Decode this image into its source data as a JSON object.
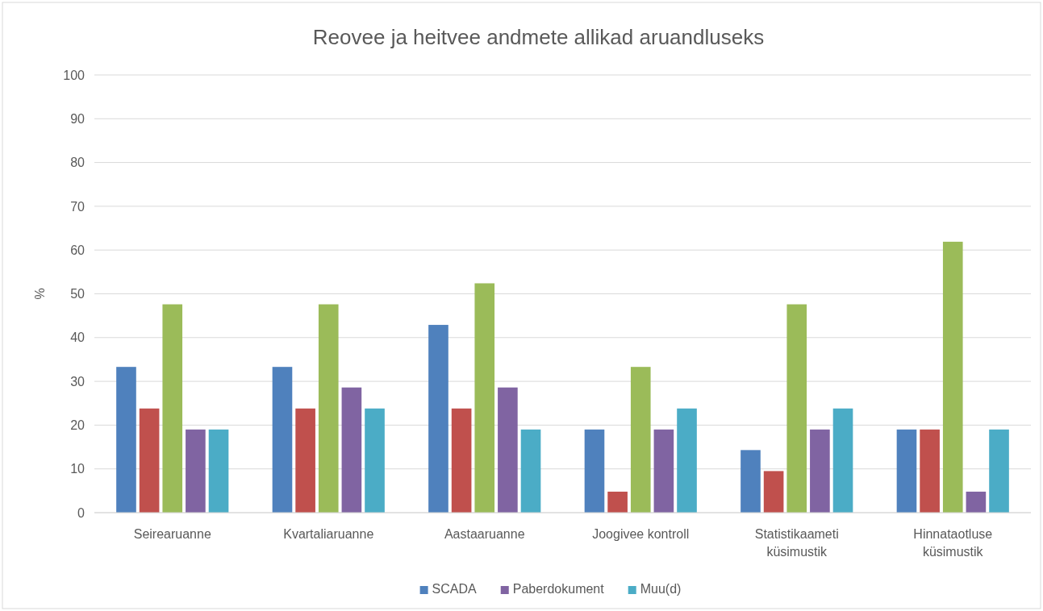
{
  "chart_data": {
    "type": "bar",
    "title": "Reovee ja heitvee andmete allikad aruandluseks",
    "ylabel": "%",
    "categories": [
      "Seirearuanne",
      "Kvartaliaruanne",
      "Aastaaruanne",
      "Joogivee kontroll",
      "Statistikaameti küsimustik",
      "Hinnataotluse küsimustik"
    ],
    "series": [
      {
        "name": "SCADA",
        "color": "#4f81bd",
        "values": [
          33.3,
          33.3,
          42.9,
          19.0,
          14.3,
          19.0
        ]
      },
      {
        "color": "#c0504d",
        "values": [
          23.8,
          23.8,
          23.8,
          4.8,
          9.5,
          19.0
        ]
      },
      {
        "color": "#9bbb59",
        "values": [
          47.6,
          47.6,
          52.4,
          33.3,
          47.6,
          61.9
        ]
      },
      {
        "name": "Paberdokument",
        "color": "#8064a2",
        "values": [
          19.0,
          28.6,
          28.6,
          19.0,
          19.0,
          4.8
        ]
      },
      {
        "name": "Muu(d)",
        "color": "#4bacc6",
        "values": [
          19.0,
          23.8,
          19.0,
          23.8,
          23.8,
          19.0
        ]
      }
    ],
    "ylim": [
      0,
      100
    ],
    "yticks": [
      0,
      10,
      20,
      30,
      40,
      50,
      60,
      70,
      80,
      90,
      100
    ],
    "grid": "y",
    "legend": "bottom"
  }
}
